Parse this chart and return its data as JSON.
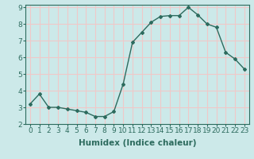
{
  "x": [
    0,
    1,
    2,
    3,
    4,
    5,
    6,
    7,
    8,
    9,
    10,
    11,
    12,
    13,
    14,
    15,
    16,
    17,
    18,
    19,
    20,
    21,
    22,
    23
  ],
  "y": [
    3.2,
    3.8,
    3.0,
    3.0,
    2.9,
    2.8,
    2.7,
    2.45,
    2.45,
    2.75,
    4.4,
    6.9,
    7.5,
    8.1,
    8.45,
    8.5,
    8.5,
    9.0,
    8.55,
    8.0,
    7.8,
    6.3,
    5.9,
    5.3
  ],
  "line_color": "#2d6b5e",
  "bg_color": "#cce9e9",
  "grid_color": "#f0c8c8",
  "xlabel": "Humidex (Indice chaleur)",
  "ylim": [
    2,
    9
  ],
  "xlim": [
    -0.5,
    23.5
  ],
  "yticks": [
    2,
    3,
    4,
    5,
    6,
    7,
    8,
    9
  ],
  "xticks": [
    0,
    1,
    2,
    3,
    4,
    5,
    6,
    7,
    8,
    9,
    10,
    11,
    12,
    13,
    14,
    15,
    16,
    17,
    18,
    19,
    20,
    21,
    22,
    23
  ],
  "tick_label_fontsize": 6.5,
  "xlabel_fontsize": 7.5,
  "marker": "D",
  "marker_size": 2.0,
  "linewidth": 1.0
}
